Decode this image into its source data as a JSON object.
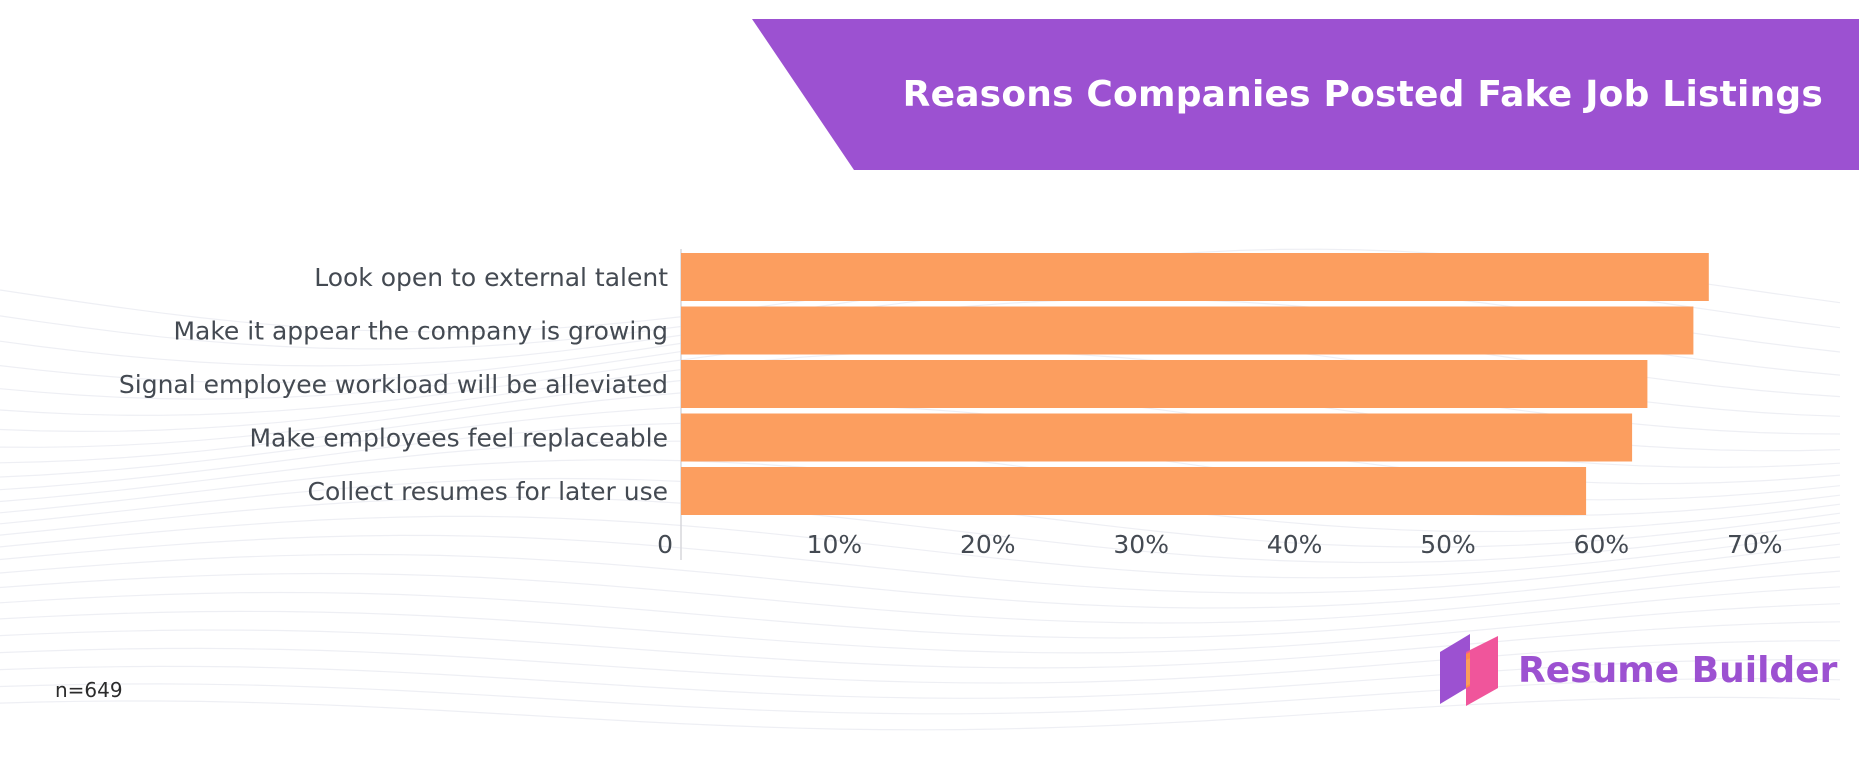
{
  "title": "Reasons Companies Posted Fake Job Listings",
  "note": "n=649",
  "brand": {
    "name": "Resume Builder",
    "icon": "resume-builder-logo-icon"
  },
  "colors": {
    "bar": "#fc9e5f",
    "banner": "#9c51d1",
    "brand_text": "#9c51d1"
  },
  "chart_data": {
    "type": "bar",
    "orientation": "horizontal",
    "categories": [
      "Look open to external talent",
      "Make it appear the company is growing",
      "Signal employee workload will be alleviated",
      "Make employees feel replaceable",
      "Collect resumes for later use"
    ],
    "values": [
      67,
      66,
      63,
      62,
      59
    ],
    "xlim": [
      0,
      70
    ],
    "ticks": [
      {
        "value": 0,
        "label": "0"
      },
      {
        "value": 10,
        "label": "10%"
      },
      {
        "value": 20,
        "label": "20%"
      },
      {
        "value": 30,
        "label": "30%"
      },
      {
        "value": 40,
        "label": "40%"
      },
      {
        "value": 50,
        "label": "50%"
      },
      {
        "value": 60,
        "label": "60%"
      },
      {
        "value": 70,
        "label": "70%"
      }
    ],
    "grid": false,
    "legend": "none"
  }
}
